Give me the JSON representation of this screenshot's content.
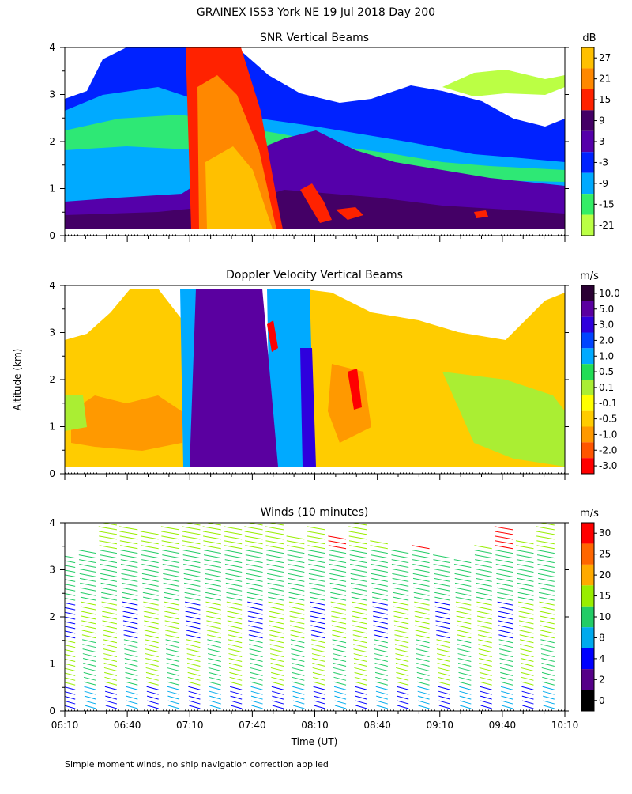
{
  "page": {
    "title": "GRAINEX ISS3 York NE  19 Jul 2018 Day 200",
    "ylabel": "Altitude (km)",
    "xlabel": "Time (UT)",
    "footnote": "Simple moment winds, no ship navigation correction applied"
  },
  "chart_data": [
    {
      "type": "heatmap",
      "title": "SNR Vertical Beams",
      "xlabel": "Time (UT)",
      "ylabel": "Altitude (km)",
      "x_ticks": [
        "06:10",
        "06:40",
        "07:10",
        "07:40",
        "08:10",
        "08:40",
        "09:10",
        "09:40",
        "10:10"
      ],
      "xlim": [
        "06:10",
        "10:10"
      ],
      "y_ticks": [
        0,
        1,
        2,
        3,
        4
      ],
      "ylim": [
        0,
        4
      ],
      "colorbar": {
        "unit": "dB",
        "ticks": [
          "27",
          "21",
          "15",
          "9",
          "3",
          "-3",
          "-9",
          "-15",
          "-21"
        ],
        "colors": [
          "#ffc000",
          "#ff8800",
          "#ff2200",
          "#440066",
          "#5500aa",
          "#0022ff",
          "#00aaff",
          "#33ee66",
          "#bbff44"
        ]
      },
      "features": [
        {
          "name": "strong echo band",
          "time_start": "07:17",
          "time_end": "07:50",
          "snr_db": 27,
          "altitude_km": [
            0.15,
            4.0
          ]
        },
        {
          "name": "weak background",
          "time_start": "06:10",
          "time_end": "10:10",
          "snr_db": -3,
          "altitude_km": [
            0.15,
            3.0
          ]
        }
      ]
    },
    {
      "type": "heatmap",
      "title": "Doppler Velocity Vertical Beams",
      "xlabel": "Time (UT)",
      "ylabel": "Altitude (km)",
      "x_ticks": [
        "06:10",
        "06:40",
        "07:10",
        "07:40",
        "08:10",
        "08:40",
        "09:10",
        "09:40",
        "10:10"
      ],
      "xlim": [
        "06:10",
        "10:10"
      ],
      "y_ticks": [
        0,
        1,
        2,
        3,
        4
      ],
      "ylim": [
        0,
        4
      ],
      "colorbar": {
        "unit": "m/s",
        "ticks": [
          "10.0",
          "5.0",
          "3.0",
          "2.0",
          "1.0",
          "0.5",
          "0.1",
          "-0.1",
          "-0.5",
          "-1.0",
          "-2.0",
          "-3.0"
        ],
        "colors": [
          "#2a0033",
          "#5a00a0",
          "#2e00dd",
          "#0044ff",
          "#00aaff",
          "#22dd55",
          "#aaee33",
          "#ffff00",
          "#ffcc00",
          "#ff9900",
          "#ff5500",
          "#ff0000"
        ]
      },
      "features": [
        {
          "name": "fall velocity band",
          "time_start": "07:12",
          "time_end": "07:50",
          "velocity_ms": 5.0,
          "altitude_km": [
            0.15,
            4.0
          ]
        }
      ]
    },
    {
      "type": "scatter",
      "title": "Winds (10 minutes)",
      "xlabel": "Time (UT)",
      "ylabel": "Altitude (km)",
      "x_ticks": [
        "06:10",
        "06:40",
        "07:10",
        "07:40",
        "08:10",
        "08:40",
        "09:10",
        "09:40",
        "10:10"
      ],
      "xlim": [
        "06:10",
        "10:10"
      ],
      "y_ticks": [
        0,
        1,
        2,
        3,
        4
      ],
      "ylim": [
        0,
        4
      ],
      "colorbar": {
        "unit": "m/s",
        "ticks": [
          "30",
          "25",
          "20",
          "15",
          "10",
          "8",
          "4",
          "2",
          "0"
        ],
        "colors": [
          "#ff0000",
          "#ff6600",
          "#ffaa00",
          "#99ee00",
          "#22cc66",
          "#00aaee",
          "#0000ff",
          "#550088",
          "#000000"
        ]
      },
      "profiles_times": [
        "06:15",
        "06:25",
        "06:35",
        "06:45",
        "06:55",
        "07:05",
        "07:15",
        "07:25",
        "07:35",
        "07:45",
        "07:55",
        "08:05",
        "08:15",
        "08:25",
        "08:35",
        "08:45",
        "08:55",
        "09:05",
        "09:15",
        "09:25",
        "09:35",
        "09:45",
        "09:55",
        "10:05"
      ],
      "top_altitude_km": [
        3.3,
        3.4,
        4.0,
        3.9,
        3.8,
        3.9,
        4.1,
        4.0,
        3.9,
        4.0,
        4.0,
        3.7,
        3.9,
        3.7,
        4.1,
        3.6,
        3.4,
        3.5,
        3.3,
        3.2,
        3.5,
        3.9,
        3.6,
        4.1
      ]
    }
  ]
}
